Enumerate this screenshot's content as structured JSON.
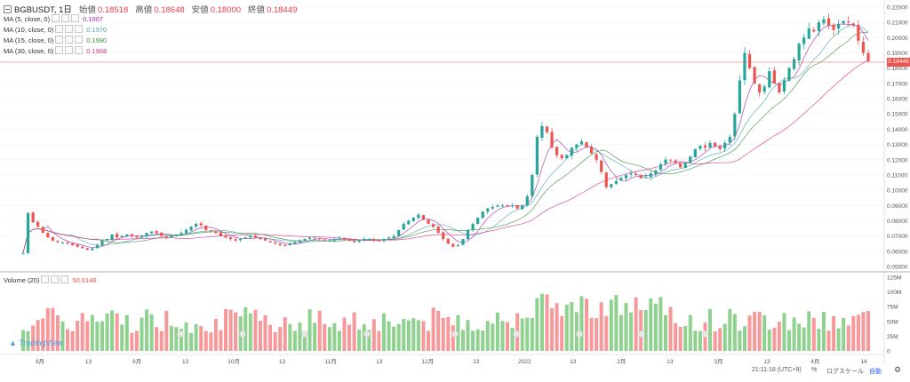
{
  "symbol": {
    "name": "BGBUSDT, 1日"
  },
  "ohlc": [
    {
      "label": "始値",
      "value": "0.18518"
    },
    {
      "label": "高値",
      "value": "0.18648"
    },
    {
      "label": "安値",
      "value": "0.18000"
    },
    {
      "label": "終値",
      "value": "0.18449"
    }
  ],
  "indicators": [
    {
      "label": "MA (5, close, 0)",
      "value": "0.1907",
      "color": "#9c27b0"
    },
    {
      "label": "MA (10, close, 0)",
      "value": "0.1970",
      "color": "#4aa3b8"
    },
    {
      "label": "MA (15, close, 0)",
      "value": "0.1990",
      "color": "#3a8f3a"
    },
    {
      "label": "MA (30, close, 0)",
      "value": "0.1968",
      "color": "#d6338c"
    }
  ],
  "volume_legend": {
    "label": "Volume (20)",
    "value": "50.6146"
  },
  "current_price_tag": "0.18449",
  "price_axis": [
    "0.22000",
    "0.21000",
    "0.20000",
    "0.19000",
    "0.18000",
    "0.17000",
    "0.16000",
    "0.15000",
    "0.14000",
    "0.13000",
    "0.12000",
    "0.11000",
    "0.10000",
    "0.09000",
    "0.08000",
    "0.07000",
    "0.06000",
    "0.05000"
  ],
  "volume_axis": [
    "125M",
    "100M",
    "75M",
    "50M",
    "25M",
    "0"
  ],
  "time_axis": [
    "8月",
    "13",
    "9月",
    "13",
    "10月",
    "13",
    "11月",
    "13",
    "12月",
    "13",
    "2022",
    "13",
    "2月",
    "13",
    "3月",
    "13",
    "4月",
    "14"
  ],
  "bottom_bar": {
    "clock": "21:11:18 (UTC+9)",
    "percent": "%",
    "log": "ログスケール",
    "auto": "自動"
  },
  "colors": {
    "up": "#26a69a",
    "down": "#ef5350",
    "price_line": "#ef5350"
  },
  "chart_data": {
    "type": "candlestick",
    "title": "BGBUSDT, 1日",
    "y_range": [
      0.05,
      0.22
    ],
    "volume_range_M": [
      0,
      125
    ],
    "series": [
      {
        "name": "MA (5, close, 0)"
      },
      {
        "name": "MA (10, close, 0)"
      },
      {
        "name": "MA (15, close, 0)"
      },
      {
        "name": "MA (30, close, 0)"
      }
    ],
    "close": [
      0.059,
      0.085,
      0.079,
      0.076,
      0.072,
      0.069,
      0.067,
      0.066,
      0.066,
      0.065,
      0.064,
      0.063,
      0.062,
      0.061,
      0.062,
      0.064,
      0.067,
      0.068,
      0.071,
      0.069,
      0.07,
      0.071,
      0.07,
      0.069,
      0.07,
      0.072,
      0.073,
      0.072,
      0.07,
      0.069,
      0.07,
      0.071,
      0.072,
      0.074,
      0.076,
      0.078,
      0.077,
      0.074,
      0.073,
      0.072,
      0.07,
      0.069,
      0.068,
      0.067,
      0.068,
      0.069,
      0.07,
      0.069,
      0.068,
      0.067,
      0.066,
      0.065,
      0.064,
      0.064,
      0.065,
      0.066,
      0.067,
      0.068,
      0.069,
      0.069,
      0.068,
      0.067,
      0.067,
      0.068,
      0.069,
      0.068,
      0.067,
      0.066,
      0.067,
      0.068,
      0.068,
      0.067,
      0.067,
      0.068,
      0.069,
      0.07,
      0.074,
      0.078,
      0.08,
      0.082,
      0.084,
      0.081,
      0.078,
      0.076,
      0.072,
      0.068,
      0.065,
      0.063,
      0.064,
      0.068,
      0.074,
      0.078,
      0.082,
      0.086,
      0.088,
      0.089,
      0.09,
      0.09,
      0.09,
      0.09,
      0.088,
      0.09,
      0.096,
      0.11,
      0.135,
      0.142,
      0.138,
      0.128,
      0.123,
      0.121,
      0.123,
      0.128,
      0.13,
      0.132,
      0.128,
      0.124,
      0.12,
      0.112,
      0.102,
      0.104,
      0.106,
      0.108,
      0.11,
      0.111,
      0.11,
      0.108,
      0.109,
      0.111,
      0.113,
      0.117,
      0.12,
      0.12,
      0.118,
      0.115,
      0.118,
      0.122,
      0.127,
      0.129,
      0.128,
      0.131,
      0.129,
      0.127,
      0.131,
      0.135,
      0.15,
      0.172,
      0.19,
      0.18,
      0.17,
      0.164,
      0.168,
      0.178,
      0.17,
      0.164,
      0.172,
      0.18,
      0.186,
      0.196,
      0.2,
      0.206,
      0.204,
      0.21,
      0.212,
      0.208,
      0.205,
      0.209,
      0.211,
      0.21,
      0.208,
      0.198,
      0.19,
      0.1845
    ]
  }
}
